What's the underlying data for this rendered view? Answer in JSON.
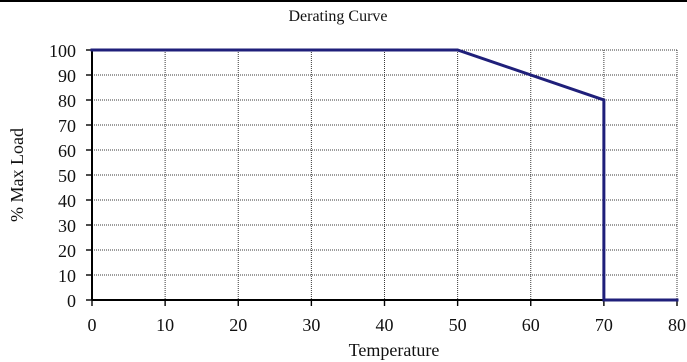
{
  "chart_data": {
    "type": "line",
    "title": "Derating Curve",
    "xlabel": "Temperature",
    "ylabel": "% Max Load",
    "xlim": [
      0,
      80
    ],
    "ylim": [
      0,
      100
    ],
    "x_ticks": [
      0,
      10,
      20,
      30,
      40,
      50,
      60,
      70,
      80
    ],
    "y_ticks": [
      0,
      10,
      20,
      30,
      40,
      50,
      60,
      70,
      80,
      90,
      100
    ],
    "grid": true,
    "series": [
      {
        "x": [
          0,
          50,
          70,
          70,
          80
        ],
        "y": [
          100,
          100,
          80,
          0,
          0
        ],
        "color": "#1f1f7a"
      }
    ]
  }
}
